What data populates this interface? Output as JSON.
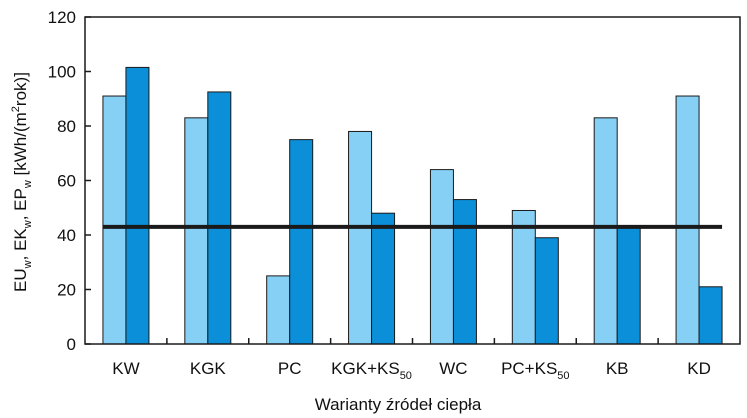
{
  "chart_data": {
    "type": "bar",
    "title": "",
    "xlabel": "Warianty źródeł ciepła",
    "ylabel": "EU_w, EK_w, EP_w [kWh/(m²rok)]",
    "ylabel_parts": {
      "eu": "EU",
      "w1": "w",
      "sep1": ", ",
      "ek": "EK",
      "w2": "w",
      "sep2": ", ",
      "ep": "EP",
      "w3": "w",
      "unit": " [kWh/(m",
      "sup": "2",
      "unit_end": "rok)]"
    },
    "categories": [
      {
        "main": "KW",
        "sub": ""
      },
      {
        "main": "KGK",
        "sub": ""
      },
      {
        "main": "PC",
        "sub": ""
      },
      {
        "main": "KGK+KS",
        "sub": "50"
      },
      {
        "main": "WC",
        "sub": ""
      },
      {
        "main": "PC+KS",
        "sub": "50"
      },
      {
        "main": "KB",
        "sub": ""
      },
      {
        "main": "KD",
        "sub": ""
      }
    ],
    "series": [
      {
        "values": [
          91,
          83,
          25,
          78,
          64,
          49,
          83,
          91
        ],
        "color": "#87d0f5"
      },
      {
        "values": [
          101.5,
          92.5,
          75,
          48,
          53,
          39,
          43,
          21
        ],
        "color": "#0b8fd8"
      }
    ],
    "reference_line": {
      "value": 43,
      "color": "#1a1a1a"
    },
    "ylim": [
      0,
      120
    ],
    "yticks": [
      0,
      20,
      40,
      60,
      80,
      100,
      120
    ],
    "grid": false,
    "legend": "none"
  }
}
